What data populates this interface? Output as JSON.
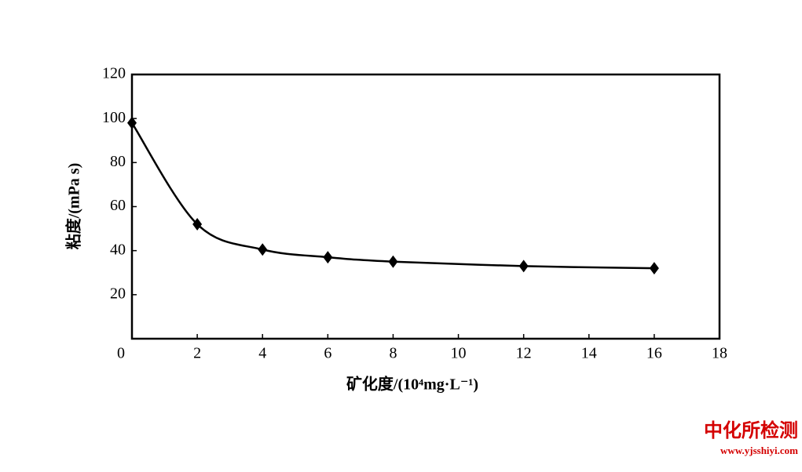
{
  "chart_data": {
    "type": "line",
    "y_label": "粘度/(mPa s)",
    "x_label": "矿化度/(10⁴mg·L⁻¹)",
    "x": [
      0,
      2,
      4,
      6,
      8,
      12,
      16
    ],
    "series": [
      {
        "color": "#000000",
        "values": [
          98,
          52,
          40.5,
          37,
          35,
          33,
          32
        ]
      }
    ],
    "xlim": [
      0,
      18
    ],
    "xticks": [
      0,
      2,
      4,
      6,
      8,
      10,
      12,
      14,
      16,
      18
    ],
    "ylim": [
      0,
      120
    ],
    "yticks": [
      20,
      40,
      60,
      80,
      100,
      120
    ],
    "grid": false
  },
  "watermark": {
    "name": "中化所检测",
    "url": "www.yjsshiyi.com"
  }
}
